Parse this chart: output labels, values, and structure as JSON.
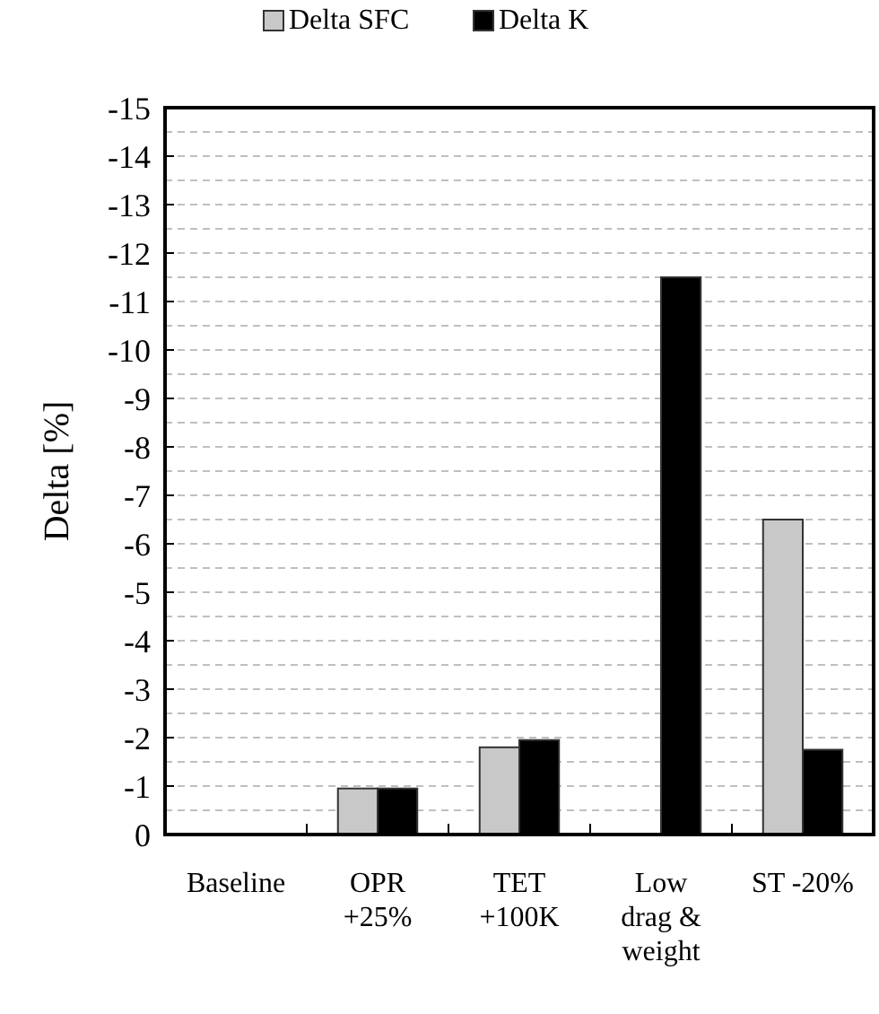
{
  "chart_data": {
    "type": "bar",
    "ylabel": "Delta [%]",
    "categories": [
      "Baseline",
      "OPR +25%",
      "TET +100K",
      "Low drag & weight",
      "ST -20%"
    ],
    "series": [
      {
        "name": "Delta SFC",
        "color": "#c8c8c8",
        "values": [
          0,
          -0.95,
          -1.8,
          0,
          -6.5
        ]
      },
      {
        "name": "Delta K",
        "color": "#000000",
        "values": [
          0,
          -0.95,
          -1.95,
          -11.5,
          -1.75
        ]
      }
    ],
    "ylim": [
      0,
      -15
    ],
    "yticks": [
      0,
      {
        "value": -0.5,
        "label": null
      },
      -1,
      {
        "value": -1.5,
        "label": null
      },
      -2,
      {
        "value": -2.5,
        "label": null
      },
      -3,
      {
        "value": -3.5,
        "label": null
      },
      -4,
      {
        "value": -4.5,
        "label": null
      },
      -5,
      {
        "value": -5.5,
        "label": null
      },
      -6,
      {
        "value": -6.5,
        "label": null
      },
      -7,
      {
        "value": -7.5,
        "label": null
      },
      -8,
      {
        "value": -8.5,
        "label": null
      },
      -9,
      {
        "value": -9.5,
        "label": null
      },
      -10,
      {
        "value": -10.5,
        "label": null
      },
      -11,
      {
        "value": -11.5,
        "label": null
      },
      -12,
      {
        "value": -12.5,
        "label": null
      },
      -13,
      {
        "value": -13.5,
        "label": null
      },
      -14,
      {
        "value": -14.5,
        "label": null
      },
      -15
    ],
    "grid": true,
    "legend": "top"
  }
}
